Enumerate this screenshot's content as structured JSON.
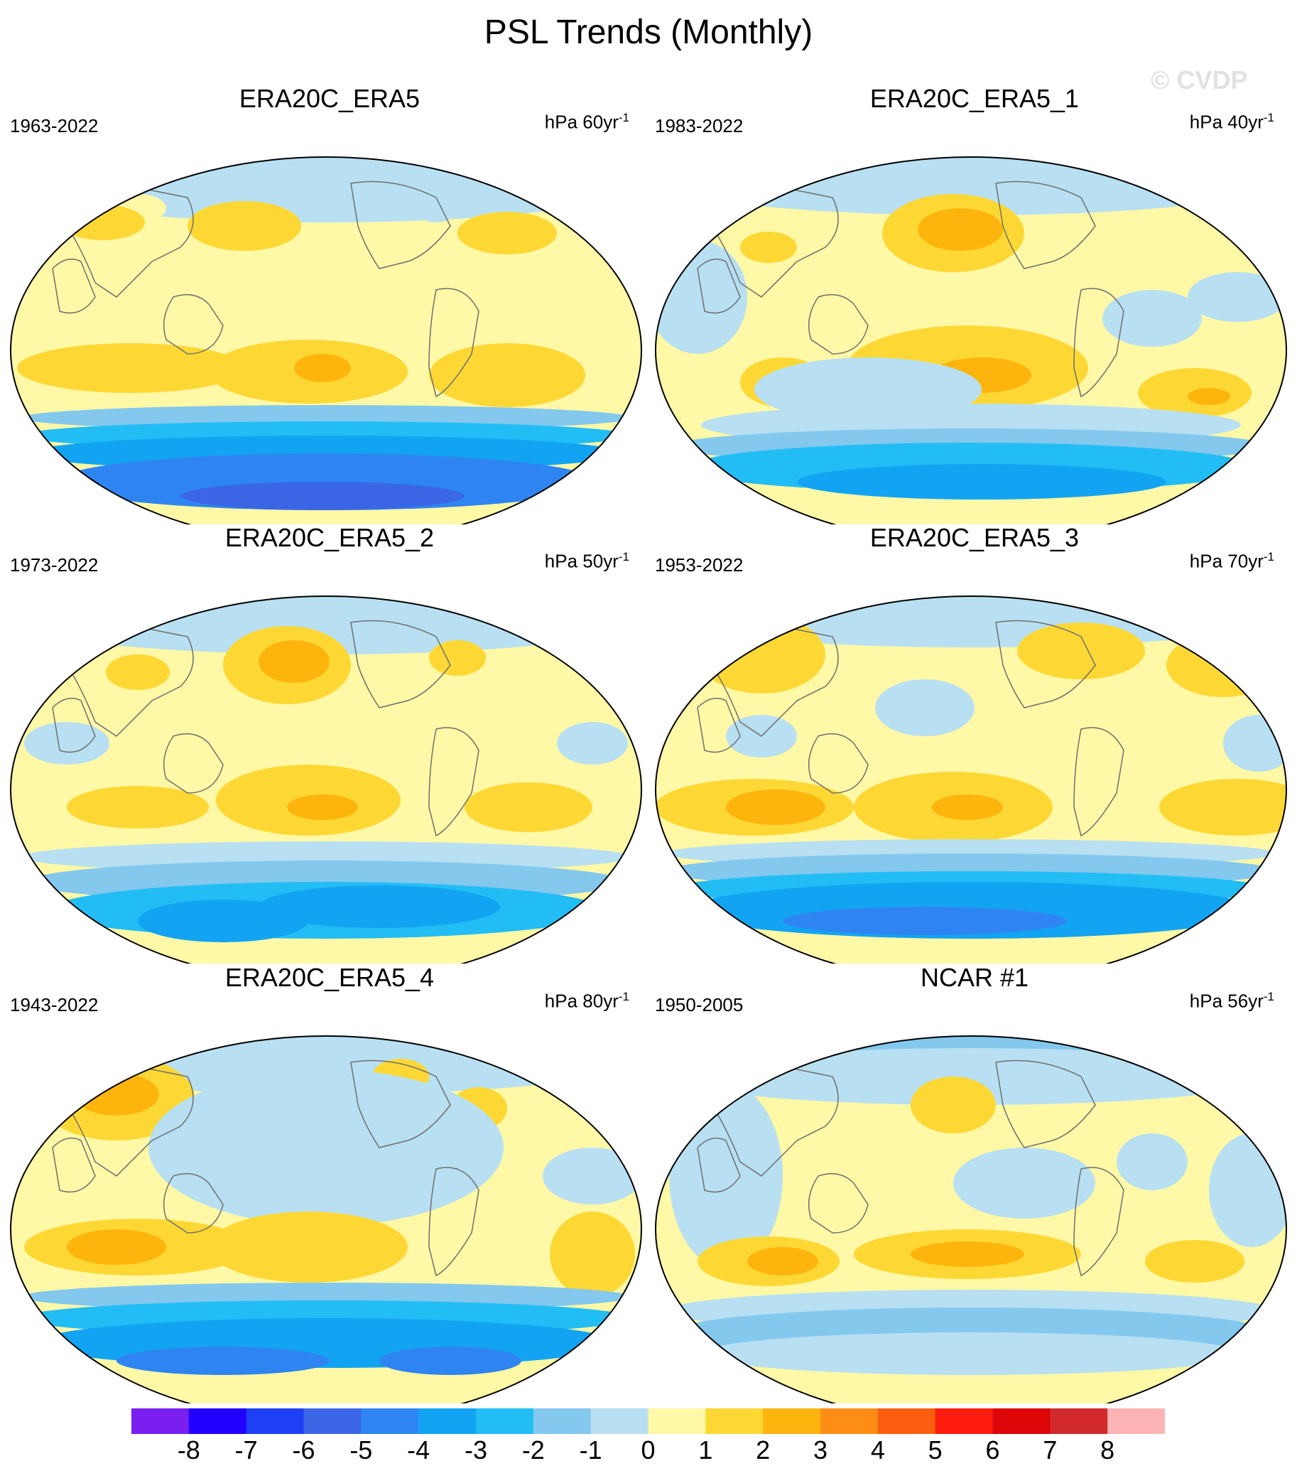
{
  "title": "PSL Trends (Monthly)",
  "watermark": "© CVDP",
  "panels": [
    {
      "title": "ERA20C_ERA5",
      "years": "1963-2022",
      "units": "hPa 60yr",
      "units_sup": "-1"
    },
    {
      "title": "ERA20C_ERA5_1",
      "years": "1983-2022",
      "units": "hPa 40yr",
      "units_sup": "-1"
    },
    {
      "title": "ERA20C_ERA5_2",
      "years": "1973-2022",
      "units": "hPa 50yr",
      "units_sup": "-1"
    },
    {
      "title": "ERA20C_ERA5_3",
      "years": "1953-2022",
      "units": "hPa 70yr",
      "units_sup": "-1"
    },
    {
      "title": "ERA20C_ERA5_4",
      "years": "1943-2022",
      "units": "hPa 80yr",
      "units_sup": "-1"
    },
    {
      "title": "NCAR #1",
      "years": "1950-2005",
      "units": "hPa 56yr",
      "units_sup": "-1"
    }
  ],
  "colorbar": {
    "labels": [
      "-8",
      "-7",
      "-6",
      "-5",
      "-4",
      "-3",
      "-2",
      "-1",
      "0",
      "1",
      "2",
      "3",
      "4",
      "5",
      "6",
      "7",
      "8"
    ],
    "colors": [
      "#7a1ff0",
      "#2200ff",
      "#1f3ff5",
      "#3a66e6",
      "#2e85f2",
      "#12a4f2",
      "#23bdf5",
      "#84c8ee",
      "#b8e0f2",
      "#fff8a6",
      "#fdd835",
      "#fdb50e",
      "#fd8d16",
      "#fb5e0f",
      "#fe1c0e",
      "#dd0508",
      "#d22a2c",
      "#feb4b4"
    ],
    "range": [
      -8,
      8
    ]
  },
  "colors": {
    "land_outline": "#6e6e6e",
    "ocean_bg": "#fff8a6"
  }
}
